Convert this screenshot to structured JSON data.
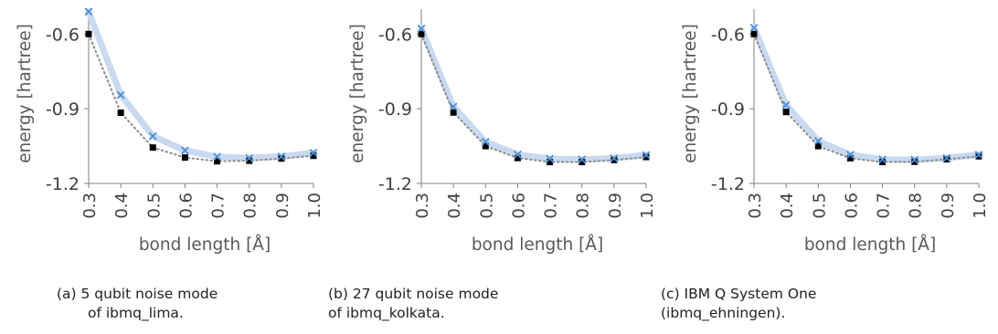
{
  "chart_data": [
    {
      "type": "line",
      "caption": [
        "(a) 5 qubit noise mode",
        "of ibmq_lima."
      ],
      "xlabel": "bond length [Å]",
      "ylabel": "energy [hartree]",
      "x": [
        0.3,
        0.4,
        0.5,
        0.6,
        0.7,
        0.8,
        0.9,
        1.0
      ],
      "x_tick_labels": [
        "0.3",
        "0.4",
        "0.5",
        "0.6",
        "0.7",
        "0.8",
        "0.9",
        "1.0"
      ],
      "y_ticks": [
        -0.6,
        -0.9,
        -1.2
      ],
      "y_tick_labels": [
        "-0.6",
        "-0.9",
        "-1.2"
      ],
      "xlim": [
        0.3,
        1.0
      ],
      "ylim": [
        -1.2,
        -0.5
      ],
      "series": [
        {
          "style": "band-with-x-markers",
          "color": "#4a90d9",
          "values": [
            -0.51,
            -0.845,
            -1.01,
            -1.068,
            -1.093,
            -1.098,
            -1.092,
            -1.077
          ]
        },
        {
          "style": "dotted-with-square-markers",
          "color": "#000000",
          "values": [
            -0.6,
            -0.916,
            -1.056,
            -1.096,
            -1.111,
            -1.109,
            -1.1,
            -1.089
          ]
        }
      ]
    },
    {
      "type": "line",
      "caption": [
        "(b) 27 qubit noise mode",
        "of ibmq_kolkata."
      ],
      "xlabel": "bond length [Å]",
      "ylabel": "energy [hartree]",
      "x": [
        0.3,
        0.4,
        0.5,
        0.6,
        0.7,
        0.8,
        0.9,
        1.0
      ],
      "x_tick_labels": [
        "0.3",
        "0.4",
        "0.5",
        "0.6",
        "0.7",
        "0.8",
        "0.9",
        "1.0"
      ],
      "y_ticks": [
        -0.6,
        -0.9,
        -1.2
      ],
      "y_tick_labels": [
        "-0.6",
        "-0.9",
        "-1.2"
      ],
      "xlim": [
        0.3,
        1.0
      ],
      "ylim": [
        -1.2,
        -0.5
      ],
      "series": [
        {
          "style": "band-with-x-markers",
          "color": "#4a90d9",
          "values": [
            -0.578,
            -0.892,
            -1.033,
            -1.084,
            -1.101,
            -1.104,
            -1.099,
            -1.086
          ]
        },
        {
          "style": "dotted-with-square-markers",
          "color": "#000000",
          "values": [
            -0.6,
            -0.915,
            -1.05,
            -1.098,
            -1.114,
            -1.114,
            -1.106,
            -1.094
          ]
        }
      ]
    },
    {
      "type": "line",
      "caption": [
        "(c) IBM Q System One",
        "(ibmq_ehningen)."
      ],
      "xlabel": "bond length [Å]",
      "ylabel": "energy [hartree]",
      "x": [
        0.3,
        0.4,
        0.5,
        0.6,
        0.7,
        0.8,
        0.9,
        1.0
      ],
      "x_tick_labels": [
        "0.3",
        "0.4",
        "0.5",
        "0.6",
        "0.7",
        "0.8",
        "0.9",
        "1.0"
      ],
      "y_ticks": [
        -0.6,
        -0.9,
        -1.2
      ],
      "y_tick_labels": [
        "-0.6",
        "-0.9",
        "-1.2"
      ],
      "xlim": [
        0.3,
        1.0
      ],
      "ylim": [
        -1.2,
        -0.5
      ],
      "series": [
        {
          "style": "band-with-x-markers",
          "color": "#4a90d9",
          "values": [
            -0.575,
            -0.885,
            -1.03,
            -1.085,
            -1.104,
            -1.105,
            -1.098,
            -1.085
          ]
        },
        {
          "style": "dotted-with-square-markers",
          "color": "#000000",
          "values": [
            -0.6,
            -0.913,
            -1.05,
            -1.099,
            -1.114,
            -1.113,
            -1.103,
            -1.091
          ]
        }
      ]
    }
  ]
}
